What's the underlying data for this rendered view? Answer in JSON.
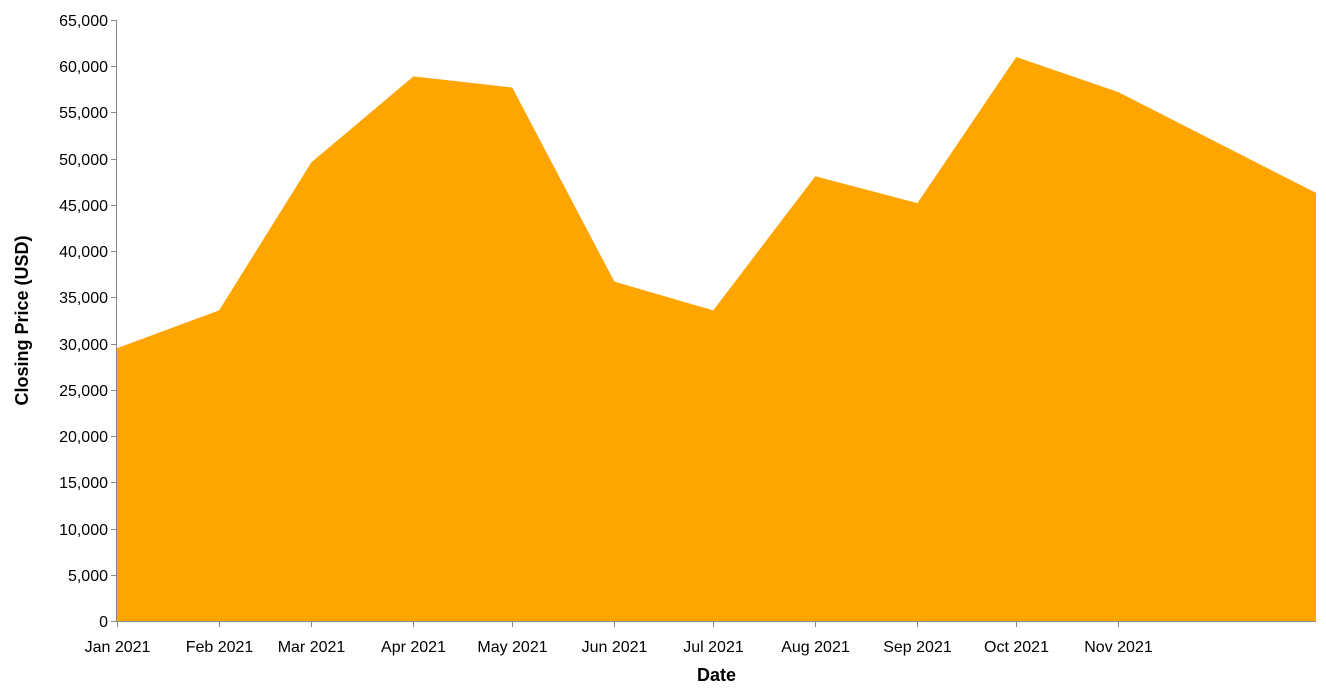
{
  "chart_data": {
    "type": "area",
    "xlabel": "Date",
    "ylabel": "Closing Price (USD)",
    "x_tick_labels": [
      "Jan 2021",
      "Feb 2021",
      "Mar 2021",
      "Apr 2021",
      "May 2021",
      "Jun 2021",
      "Jul 2021",
      "Aug 2021",
      "Sep 2021",
      "Oct 2021",
      "Nov 2021"
    ],
    "y_tick_labels": [
      "0",
      "5,000",
      "10,000",
      "15,000",
      "20,000",
      "25,000",
      "30,000",
      "35,000",
      "40,000",
      "45,000",
      "50,000",
      "55,000",
      "60,000",
      "65,000"
    ],
    "yticks": [
      0,
      5000,
      10000,
      15000,
      20000,
      25000,
      30000,
      35000,
      40000,
      45000,
      50000,
      55000,
      60000,
      65000
    ],
    "ylim": [
      0,
      65000
    ],
    "xlim": [
      "2021-01-01",
      "2021-12-31"
    ],
    "x": [
      "2021-01-01",
      "2021-02-01",
      "2021-03-01",
      "2021-04-01",
      "2021-05-01",
      "2021-06-01",
      "2021-07-01",
      "2021-08-01",
      "2021-09-01",
      "2021-10-01",
      "2021-11-01",
      "2021-12-31"
    ],
    "values": [
      29500,
      33600,
      49600,
      58900,
      57700,
      36700,
      33600,
      48100,
      45200,
      61000,
      57200,
      46300
    ],
    "color": "#ffa500",
    "axis_color": "#888888",
    "grid": false
  }
}
